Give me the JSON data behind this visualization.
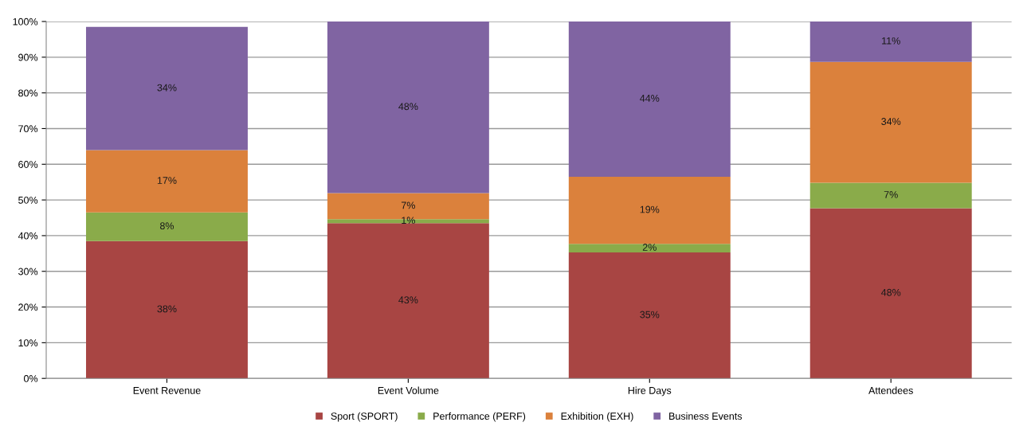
{
  "chart_data": {
    "type": "bar",
    "stacked": true,
    "categories": [
      "Event Revenue",
      "Event Volume",
      "Hire Days",
      "Attendees"
    ],
    "series": [
      {
        "name": "Sport (SPORT)",
        "color": "#a84543",
        "values": [
          38.49,
          43.5,
          35.3,
          47.7
        ],
        "value_labels": [
          "38%",
          "43%",
          "35%",
          "48%"
        ]
      },
      {
        "name": "Performance (PERF)",
        "color": "#8aab4a",
        "values": [
          8.0,
          1.1,
          2.4,
          7.1
        ],
        "value_labels": [
          "8%",
          "1%",
          "2%",
          "7%"
        ]
      },
      {
        "name": "Exhibition (EXH)",
        "color": "#db813c",
        "values": [
          17.49,
          7.3,
          18.8,
          33.9
        ],
        "value_labels": [
          "17%",
          "7%",
          "19%",
          "34%"
        ]
      },
      {
        "name": "Business Events",
        "color": "#8064a2",
        "values": [
          34.49,
          48.1,
          43.5,
          11.3
        ],
        "value_labels": [
          "34%",
          "48%",
          "44%",
          "11%"
        ]
      }
    ],
    "ylim": [
      0,
      100
    ],
    "yticks": [
      {
        "value": 0,
        "label": "0%"
      },
      {
        "value": 10,
        "label": "10%"
      },
      {
        "value": 20,
        "label": "20%"
      },
      {
        "value": 30,
        "label": "30%"
      },
      {
        "value": 40,
        "label": "40%"
      },
      {
        "value": 50,
        "label": "50%"
      },
      {
        "value": 60,
        "label": "60%"
      },
      {
        "value": 70,
        "label": "70%"
      },
      {
        "value": 80,
        "label": "80%"
      },
      {
        "value": 90,
        "label": "90%"
      },
      {
        "value": 100,
        "label": "100%"
      }
    ],
    "grid": "y",
    "legend": "bottom"
  }
}
